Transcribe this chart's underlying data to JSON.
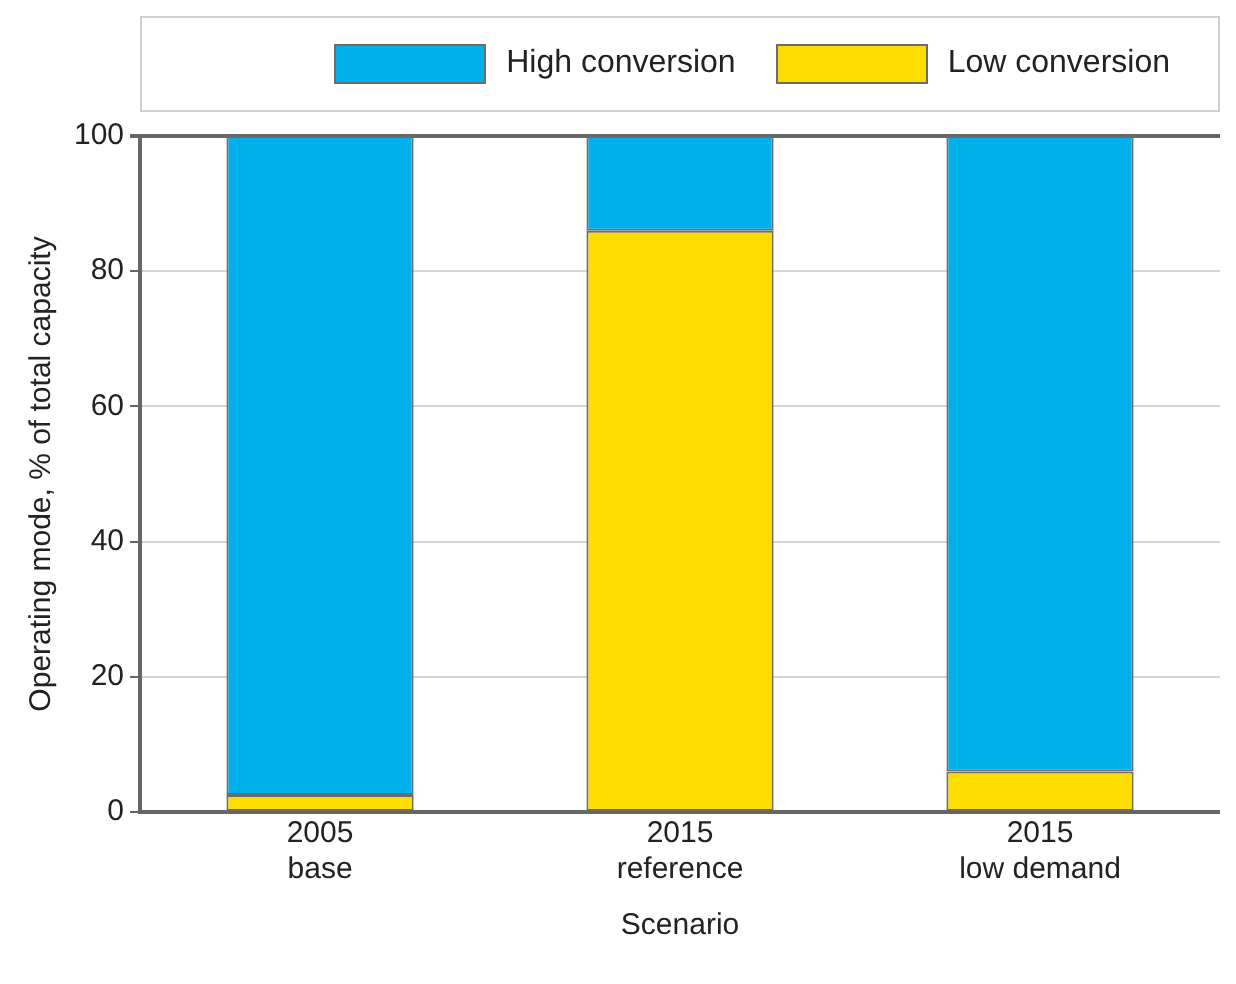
{
  "chart_data": {
    "type": "bar",
    "stacked": true,
    "xlabel": "Scenario",
    "ylabel": "Operating mode, % of total capacity",
    "categories": [
      "2005\nbase",
      "2015\nreference",
      "2015\nlow demand"
    ],
    "series": [
      {
        "name": "Low conversion",
        "color": "#ffdd00",
        "values": [
          2.5,
          86,
          6
        ]
      },
      {
        "name": "High conversion",
        "color": "#00b0ea",
        "values": [
          97.5,
          14,
          94
        ]
      }
    ],
    "ylim": [
      0,
      100
    ],
    "yticks": [
      0,
      20,
      40,
      60,
      80,
      100
    ],
    "grid": "y",
    "legend": "top"
  }
}
